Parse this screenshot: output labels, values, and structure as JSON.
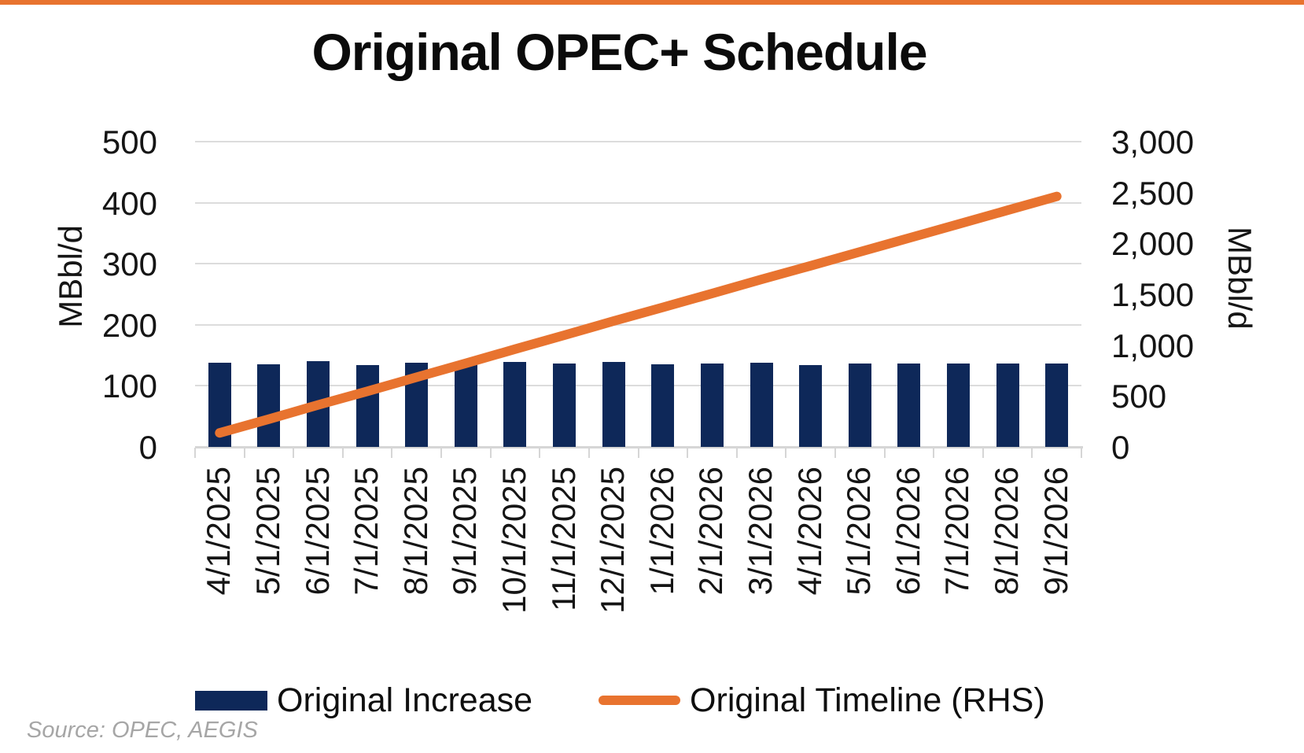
{
  "brand": {
    "top_rule_color": "#E8732F"
  },
  "chart": {
    "title": "Original OPEC+ Schedule",
    "left_axis": {
      "label": "MBbl/d",
      "ticks": [
        "0",
        "100",
        "200",
        "300",
        "400",
        "500"
      ]
    },
    "right_axis": {
      "label": "MBbl/d",
      "ticks": [
        "0",
        "500",
        "1,000",
        "1,500",
        "2,000",
        "2,500",
        "3,000"
      ]
    },
    "legend": [
      {
        "label": "Original Increase",
        "color": "#0E2859",
        "type": "bar"
      },
      {
        "label": "Original Timeline (RHS)",
        "color": "#E8732F",
        "type": "line"
      }
    ],
    "source": "Source: OPEC, AEGIS"
  },
  "chart_data": {
    "type": "bar",
    "title": "Original OPEC+ Schedule",
    "categories": [
      "4/1/2025",
      "5/1/2025",
      "6/1/2025",
      "7/1/2025",
      "8/1/2025",
      "9/1/2025",
      "10/1/2025",
      "11/1/2025",
      "12/1/2025",
      "1/1/2026",
      "2/1/2026",
      "3/1/2026",
      "4/1/2026",
      "5/1/2026",
      "6/1/2026",
      "7/1/2026",
      "8/1/2026",
      "9/1/2026"
    ],
    "series": [
      {
        "name": "Original Increase",
        "type": "bar",
        "axis": "left",
        "color": "#0E2859",
        "values": [
          138,
          135,
          140,
          134,
          138,
          137,
          139,
          137,
          139,
          135,
          136,
          138,
          134,
          137,
          136,
          136,
          137,
          136
        ]
      },
      {
        "name": "Original Timeline (RHS)",
        "type": "line",
        "axis": "right",
        "color": "#E8732F",
        "values": [
          138,
          273,
          413,
          547,
          685,
          822,
          961,
          1098,
          1237,
          1372,
          1508,
          1646,
          1780,
          1917,
          2053,
          2189,
          2326,
          2462
        ]
      }
    ],
    "left_ylabel": "MBbl/d",
    "right_ylabel": "MBbl/d",
    "left_ylim": [
      0,
      500
    ],
    "right_ylim": [
      0,
      3000
    ],
    "grid": true,
    "legend_position": "bottom"
  }
}
